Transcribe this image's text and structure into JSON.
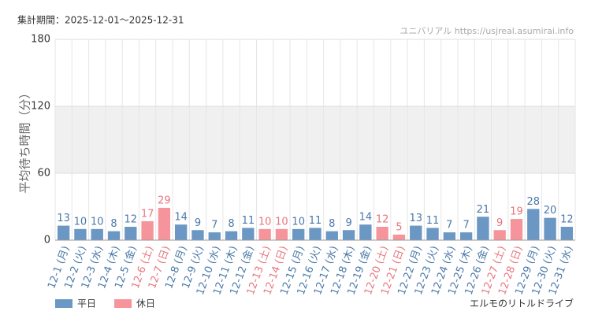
{
  "chart_data": {
    "type": "bar",
    "title": "集計期間：2025-12-01～2025-12-31",
    "watermark": "ユニバリアル  https://usjreal.asumirai.info",
    "footnote": "エルモのリトルドライブ",
    "y_label": "平均待ち時間（分）",
    "categories": [
      "12-1 (月)",
      "12-2 (火)",
      "12-3 (水)",
      "12-4 (木)",
      "12-5 (金)",
      "12-6 (土)",
      "12-7 (日)",
      "12-8 (月)",
      "12-9 (火)",
      "12-10 (水)",
      "12-11 (木)",
      "12-12 (金)",
      "12-13 (土)",
      "12-14 (日)",
      "12-15 (月)",
      "12-16 (火)",
      "12-17 (水)",
      "12-18 (木)",
      "12-19 (金)",
      "12-20 (土)",
      "12-21 (日)",
      "12-22 (月)",
      "12-23 (火)",
      "12-24 (水)",
      "12-25 (木)",
      "12-26 (金)",
      "12-27 (土)",
      "12-28 (日)",
      "12-29 (月)",
      "12-30 (火)",
      "12-31 (水)"
    ],
    "series": [
      {
        "name": "平日",
        "color": "#6a97c4",
        "values": [
          13,
          10,
          10,
          8,
          12,
          null,
          null,
          14,
          9,
          7,
          8,
          11,
          null,
          null,
          10,
          11,
          8,
          9,
          14,
          null,
          null,
          13,
          11,
          7,
          7,
          21,
          null,
          null,
          28,
          20,
          12
        ]
      },
      {
        "name": "休日",
        "color": "#f5959b",
        "values": [
          null,
          null,
          null,
          null,
          null,
          17,
          29,
          null,
          null,
          null,
          null,
          null,
          10,
          10,
          null,
          null,
          null,
          null,
          null,
          12,
          5,
          null,
          null,
          null,
          null,
          null,
          9,
          19,
          null,
          null,
          null
        ]
      }
    ],
    "ylim": [
      0,
      180
    ],
    "yticks": [
      0,
      60,
      120,
      180
    ],
    "shaded_range": [
      60,
      120
    ],
    "grid": true
  }
}
